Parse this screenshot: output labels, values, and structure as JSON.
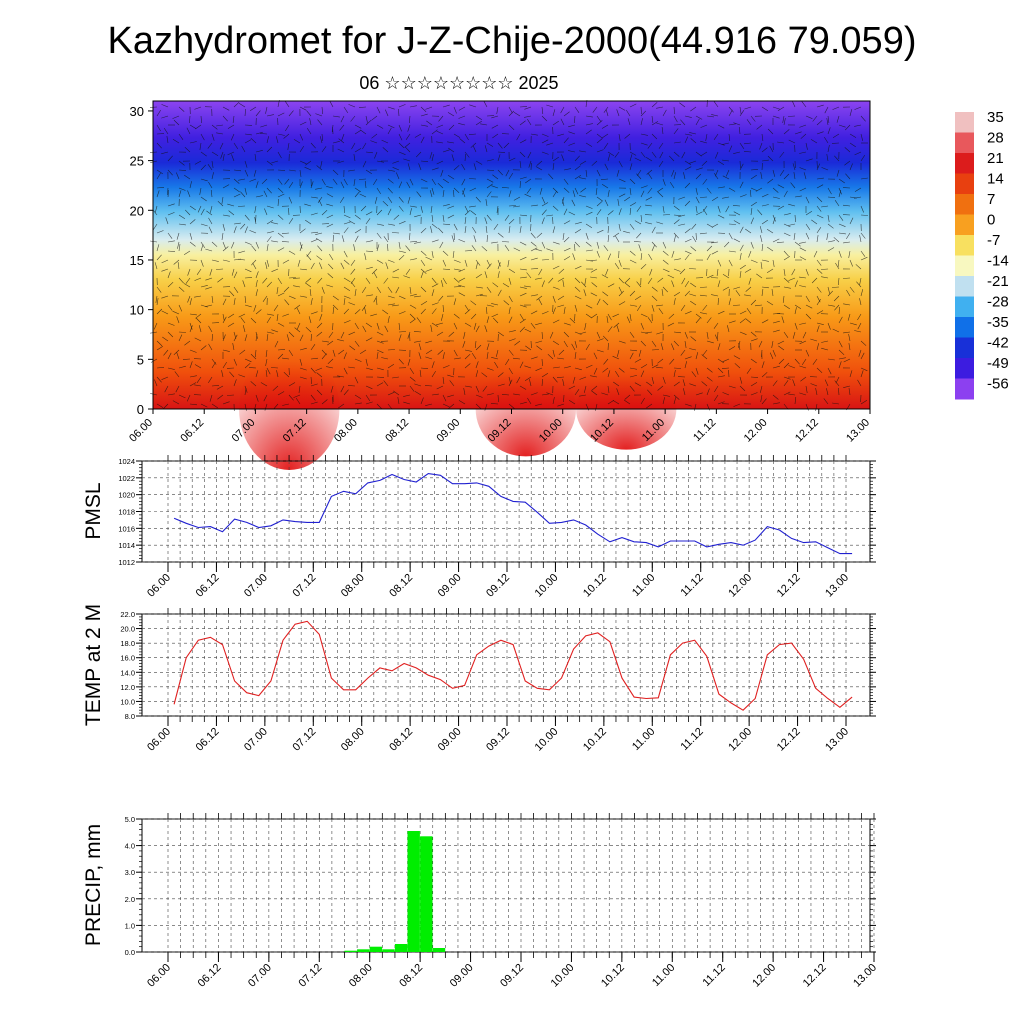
{
  "title": "Kazhydromet for J-Z-Chije-2000(44.916 79.059)",
  "subtitle": "06 ☆☆☆☆☆☆☆☆ 2025",
  "chart_data": [
    {
      "type": "heatmap",
      "description": "Vertical cross-section of temperature with wind barbs",
      "x_ticks": [
        "06.00",
        "06.12",
        "07.00",
        "07.12",
        "08.00",
        "08.12",
        "09.00",
        "09.12",
        "10.00",
        "10.12",
        "11.00",
        "11.12",
        "12.00",
        "12.12",
        "13.00"
      ],
      "y_ticks": [
        "0",
        "5",
        "10",
        "15",
        "20",
        "25",
        "30"
      ],
      "ylim": [
        0,
        31
      ],
      "colorbar": {
        "labels": [
          "35",
          "28",
          "21",
          "14",
          "7",
          "0",
          "-7",
          "-14",
          "-21",
          "-28",
          "-35",
          "-42",
          "-49",
          "-56"
        ],
        "colors": [
          "#f0c0c0",
          "#e8585c",
          "#dc1c1c",
          "#e84010",
          "#f07010",
          "#f8a020",
          "#f8e060",
          "#f8f8c0",
          "#c0e0f0",
          "#40b0f0",
          "#1070e8",
          "#1830d8",
          "#3c1ce0",
          "#8c40f0"
        ]
      }
    },
    {
      "type": "line",
      "ylabel": "PMSL",
      "ylim": [
        1012,
        1024
      ],
      "y_ticks": [
        "1012",
        "1014",
        "1016",
        "1018",
        "1020",
        "1022",
        "1024"
      ],
      "x_ticks": [
        "06.00",
        "06.12",
        "07.00",
        "07.12",
        "08.00",
        "08.12",
        "09.00",
        "09.12",
        "10.00",
        "10.12",
        "11.00",
        "11.12",
        "12.00",
        "12.12",
        "13.00"
      ],
      "line_color": "#2020d0",
      "step_hours": 3,
      "values": [
        1017.2,
        1016.6,
        1016.1,
        1016.2,
        1015.6,
        1017.1,
        1016.7,
        1016.1,
        1016.3,
        1017.0,
        1016.8,
        1016.7,
        1016.7,
        1019.8,
        1020.4,
        1020.1,
        1021.4,
        1021.7,
        1022.4,
        1021.8,
        1021.5,
        1022.5,
        1022.3,
        1021.3,
        1021.3,
        1021.4,
        1021.0,
        1019.8,
        1019.2,
        1019.1,
        1017.9,
        1016.6,
        1016.7,
        1017.0,
        1016.4,
        1015.3,
        1014.4,
        1014.9,
        1014.4,
        1014.3,
        1013.8,
        1014.5,
        1014.5,
        1014.5,
        1013.8,
        1014.1,
        1014.3,
        1014.0,
        1014.6,
        1016.2,
        1015.8,
        1014.8,
        1014.3,
        1014.4,
        1013.7,
        1013.0,
        1013.0
      ]
    },
    {
      "type": "line",
      "ylabel": "TEMP at 2 M",
      "ylim": [
        8.0,
        22.0
      ],
      "y_ticks": [
        "8.0",
        "10.0",
        "12.0",
        "14.0",
        "16.0",
        "18.0",
        "20.0",
        "22.0"
      ],
      "x_ticks": [
        "06.00",
        "06.12",
        "07.00",
        "07.12",
        "08.00",
        "08.12",
        "09.00",
        "09.12",
        "10.00",
        "10.12",
        "11.00",
        "11.12",
        "12.00",
        "12.12",
        "13.00"
      ],
      "line_color": "#e02020",
      "step_hours": 3,
      "values": [
        9.6,
        16.0,
        18.4,
        18.8,
        17.8,
        12.8,
        11.2,
        10.8,
        12.8,
        18.4,
        20.6,
        21.0,
        19.2,
        13.2,
        11.6,
        11.6,
        13.2,
        14.6,
        14.2,
        15.2,
        14.6,
        13.6,
        13.0,
        11.8,
        12.2,
        16.4,
        17.6,
        18.4,
        17.8,
        12.8,
        11.8,
        11.6,
        13.2,
        17.2,
        19.0,
        19.4,
        18.2,
        13.2,
        10.6,
        10.4,
        10.5,
        16.4,
        18.0,
        18.4,
        16.2,
        11.0,
        9.8,
        8.8,
        10.4,
        16.4,
        17.8,
        18.0,
        15.8,
        11.8,
        10.4,
        9.2,
        10.6
      ]
    },
    {
      "type": "bar",
      "ylabel": "PRECIP, mm",
      "ylim": [
        0,
        5.0
      ],
      "y_ticks": [
        "0.0",
        "1.0",
        "2.0",
        "3.0",
        "4.0",
        "5.0"
      ],
      "x_ticks": [
        "06.00",
        "06.12",
        "07.00",
        "07.12",
        "08.00",
        "08.12",
        "09.00",
        "09.12",
        "10.00",
        "10.12",
        "11.00",
        "11.12",
        "12.00",
        "12.12",
        "13.00"
      ],
      "bar_color": "#00ee00",
      "step_hours": 3,
      "values": [
        0,
        0,
        0,
        0,
        0,
        0,
        0,
        0,
        0,
        0,
        0,
        0,
        0,
        0,
        0.05,
        0.1,
        0.2,
        0.1,
        0.3,
        4.55,
        4.35,
        0.15,
        0,
        0,
        0,
        0,
        0,
        0,
        0,
        0,
        0,
        0,
        0,
        0,
        0,
        0,
        0,
        0,
        0,
        0,
        0,
        0,
        0,
        0,
        0,
        0,
        0,
        0,
        0,
        0,
        0,
        0,
        0,
        0,
        0,
        0,
        0
      ]
    }
  ]
}
